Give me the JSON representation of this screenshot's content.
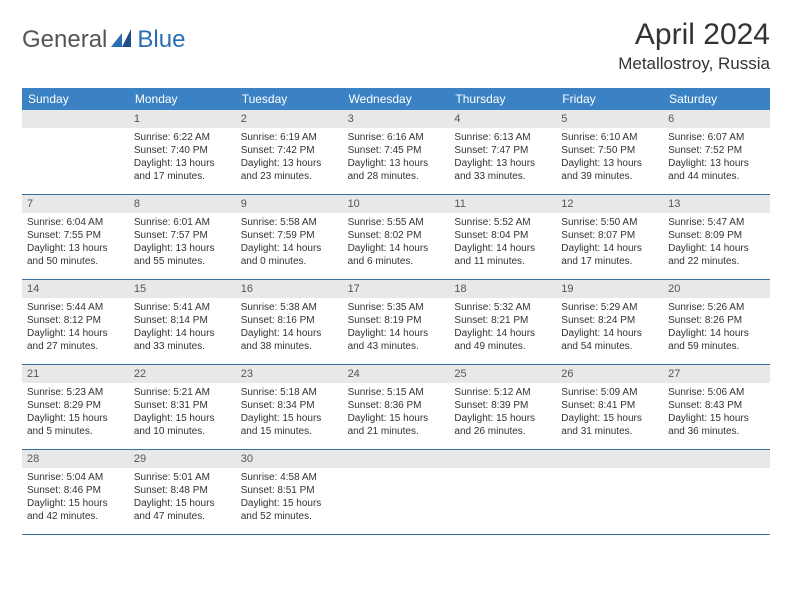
{
  "brand": {
    "word1": "General",
    "word2": "Blue"
  },
  "title": "April 2024",
  "location": "Metallostroy, Russia",
  "colors": {
    "header_bg": "#3b82c4",
    "header_fg": "#ffffff",
    "daynum_bg": "#e8e8e8",
    "daynum_fg": "#555555",
    "rule": "#3b6fa0",
    "text": "#333333",
    "brand_gray": "#555555",
    "brand_blue": "#2a6db5"
  },
  "day_headers": [
    "Sunday",
    "Monday",
    "Tuesday",
    "Wednesday",
    "Thursday",
    "Friday",
    "Saturday"
  ],
  "weeks": [
    [
      null,
      {
        "n": "1",
        "sr": "Sunrise: 6:22 AM",
        "ss": "Sunset: 7:40 PM",
        "d1": "Daylight: 13 hours",
        "d2": "and 17 minutes."
      },
      {
        "n": "2",
        "sr": "Sunrise: 6:19 AM",
        "ss": "Sunset: 7:42 PM",
        "d1": "Daylight: 13 hours",
        "d2": "and 23 minutes."
      },
      {
        "n": "3",
        "sr": "Sunrise: 6:16 AM",
        "ss": "Sunset: 7:45 PM",
        "d1": "Daylight: 13 hours",
        "d2": "and 28 minutes."
      },
      {
        "n": "4",
        "sr": "Sunrise: 6:13 AM",
        "ss": "Sunset: 7:47 PM",
        "d1": "Daylight: 13 hours",
        "d2": "and 33 minutes."
      },
      {
        "n": "5",
        "sr": "Sunrise: 6:10 AM",
        "ss": "Sunset: 7:50 PM",
        "d1": "Daylight: 13 hours",
        "d2": "and 39 minutes."
      },
      {
        "n": "6",
        "sr": "Sunrise: 6:07 AM",
        "ss": "Sunset: 7:52 PM",
        "d1": "Daylight: 13 hours",
        "d2": "and 44 minutes."
      }
    ],
    [
      {
        "n": "7",
        "sr": "Sunrise: 6:04 AM",
        "ss": "Sunset: 7:55 PM",
        "d1": "Daylight: 13 hours",
        "d2": "and 50 minutes."
      },
      {
        "n": "8",
        "sr": "Sunrise: 6:01 AM",
        "ss": "Sunset: 7:57 PM",
        "d1": "Daylight: 13 hours",
        "d2": "and 55 minutes."
      },
      {
        "n": "9",
        "sr": "Sunrise: 5:58 AM",
        "ss": "Sunset: 7:59 PM",
        "d1": "Daylight: 14 hours",
        "d2": "and 0 minutes."
      },
      {
        "n": "10",
        "sr": "Sunrise: 5:55 AM",
        "ss": "Sunset: 8:02 PM",
        "d1": "Daylight: 14 hours",
        "d2": "and 6 minutes."
      },
      {
        "n": "11",
        "sr": "Sunrise: 5:52 AM",
        "ss": "Sunset: 8:04 PM",
        "d1": "Daylight: 14 hours",
        "d2": "and 11 minutes."
      },
      {
        "n": "12",
        "sr": "Sunrise: 5:50 AM",
        "ss": "Sunset: 8:07 PM",
        "d1": "Daylight: 14 hours",
        "d2": "and 17 minutes."
      },
      {
        "n": "13",
        "sr": "Sunrise: 5:47 AM",
        "ss": "Sunset: 8:09 PM",
        "d1": "Daylight: 14 hours",
        "d2": "and 22 minutes."
      }
    ],
    [
      {
        "n": "14",
        "sr": "Sunrise: 5:44 AM",
        "ss": "Sunset: 8:12 PM",
        "d1": "Daylight: 14 hours",
        "d2": "and 27 minutes."
      },
      {
        "n": "15",
        "sr": "Sunrise: 5:41 AM",
        "ss": "Sunset: 8:14 PM",
        "d1": "Daylight: 14 hours",
        "d2": "and 33 minutes."
      },
      {
        "n": "16",
        "sr": "Sunrise: 5:38 AM",
        "ss": "Sunset: 8:16 PM",
        "d1": "Daylight: 14 hours",
        "d2": "and 38 minutes."
      },
      {
        "n": "17",
        "sr": "Sunrise: 5:35 AM",
        "ss": "Sunset: 8:19 PM",
        "d1": "Daylight: 14 hours",
        "d2": "and 43 minutes."
      },
      {
        "n": "18",
        "sr": "Sunrise: 5:32 AM",
        "ss": "Sunset: 8:21 PM",
        "d1": "Daylight: 14 hours",
        "d2": "and 49 minutes."
      },
      {
        "n": "19",
        "sr": "Sunrise: 5:29 AM",
        "ss": "Sunset: 8:24 PM",
        "d1": "Daylight: 14 hours",
        "d2": "and 54 minutes."
      },
      {
        "n": "20",
        "sr": "Sunrise: 5:26 AM",
        "ss": "Sunset: 8:26 PM",
        "d1": "Daylight: 14 hours",
        "d2": "and 59 minutes."
      }
    ],
    [
      {
        "n": "21",
        "sr": "Sunrise: 5:23 AM",
        "ss": "Sunset: 8:29 PM",
        "d1": "Daylight: 15 hours",
        "d2": "and 5 minutes."
      },
      {
        "n": "22",
        "sr": "Sunrise: 5:21 AM",
        "ss": "Sunset: 8:31 PM",
        "d1": "Daylight: 15 hours",
        "d2": "and 10 minutes."
      },
      {
        "n": "23",
        "sr": "Sunrise: 5:18 AM",
        "ss": "Sunset: 8:34 PM",
        "d1": "Daylight: 15 hours",
        "d2": "and 15 minutes."
      },
      {
        "n": "24",
        "sr": "Sunrise: 5:15 AM",
        "ss": "Sunset: 8:36 PM",
        "d1": "Daylight: 15 hours",
        "d2": "and 21 minutes."
      },
      {
        "n": "25",
        "sr": "Sunrise: 5:12 AM",
        "ss": "Sunset: 8:39 PM",
        "d1": "Daylight: 15 hours",
        "d2": "and 26 minutes."
      },
      {
        "n": "26",
        "sr": "Sunrise: 5:09 AM",
        "ss": "Sunset: 8:41 PM",
        "d1": "Daylight: 15 hours",
        "d2": "and 31 minutes."
      },
      {
        "n": "27",
        "sr": "Sunrise: 5:06 AM",
        "ss": "Sunset: 8:43 PM",
        "d1": "Daylight: 15 hours",
        "d2": "and 36 minutes."
      }
    ],
    [
      {
        "n": "28",
        "sr": "Sunrise: 5:04 AM",
        "ss": "Sunset: 8:46 PM",
        "d1": "Daylight: 15 hours",
        "d2": "and 42 minutes."
      },
      {
        "n": "29",
        "sr": "Sunrise: 5:01 AM",
        "ss": "Sunset: 8:48 PM",
        "d1": "Daylight: 15 hours",
        "d2": "and 47 minutes."
      },
      {
        "n": "30",
        "sr": "Sunrise: 4:58 AM",
        "ss": "Sunset: 8:51 PM",
        "d1": "Daylight: 15 hours",
        "d2": "and 52 minutes."
      },
      null,
      null,
      null,
      null
    ]
  ]
}
